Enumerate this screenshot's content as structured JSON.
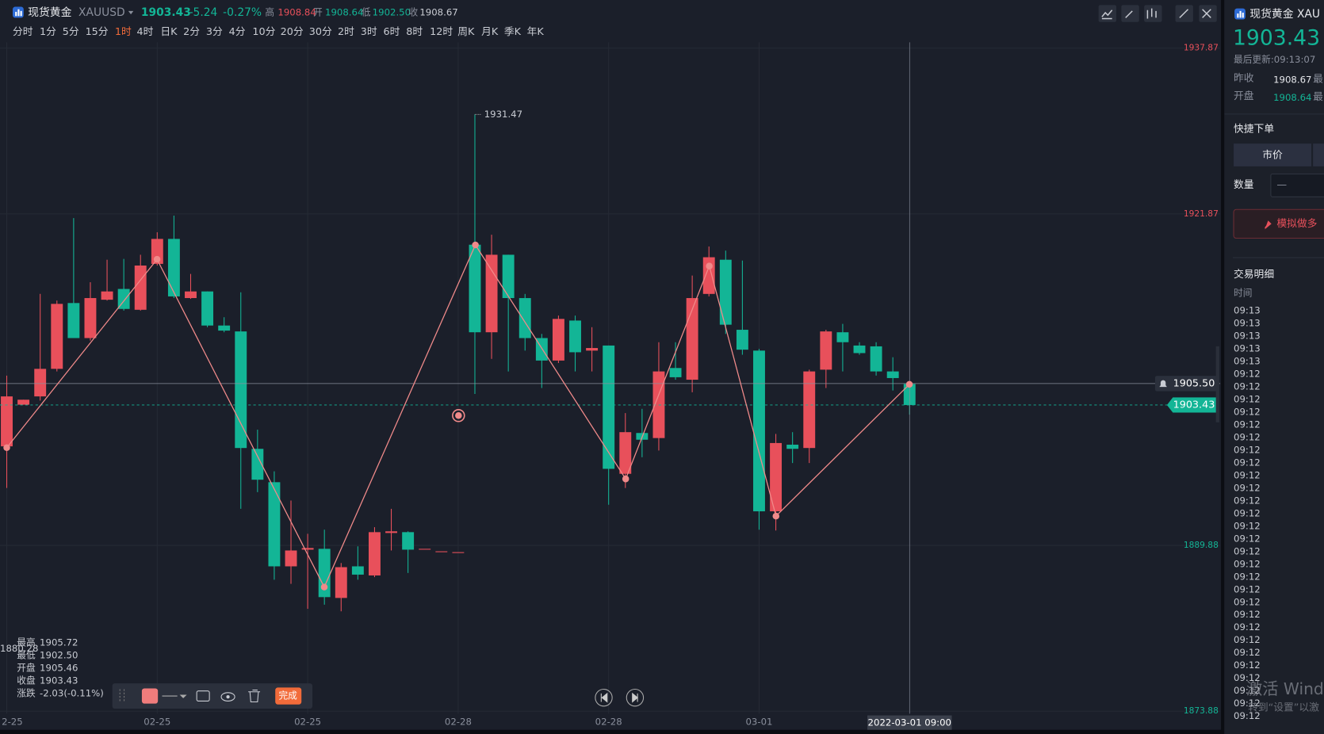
{
  "header": {
    "name": "现货黄金",
    "symbol": "XAUUSD",
    "price": "1903.43",
    "change": "-5.24",
    "change_pct": "-0.27%",
    "high_label": "高",
    "high": "1908.84",
    "open_label": "开",
    "open": "1908.64",
    "low_label": "低",
    "low": "1902.50",
    "close_label": "收",
    "prev_close": 1908.67
  },
  "timeframes": [
    "分时",
    "1分",
    "5分",
    "15分",
    "1时",
    "4时",
    "日K",
    "2分",
    "3分",
    "4分",
    "10分",
    "20分",
    "30分",
    "2时",
    "3时",
    "6时",
    "8时",
    "12时",
    "周K",
    "月K",
    "季K",
    "年K"
  ],
  "active_timeframe": "1时",
  "info": {
    "high_label": "最高",
    "high": "1905.72",
    "low_label": "最低",
    "low": "1902.50",
    "open_label": "开盘",
    "open": "1905.46",
    "close_label": "收盘",
    "close": "1903.43",
    "change_label": "涨跌",
    "change": "-2.03(-0.11%)"
  },
  "left_price": "1880.28",
  "toolbar": {
    "done": "完成"
  },
  "chart_data": {
    "type": "candlestick",
    "up_color": "#e8505b",
    "down_color": "#13b596",
    "ylim": [
      1873.88,
      1937.87
    ],
    "yticks": [
      1937.87,
      1921.87,
      1889.88,
      1873.88
    ],
    "xticks": [
      {
        "value": 0,
        "label": "2-25"
      },
      {
        "value": 9,
        "label": "02-25"
      },
      {
        "value": 18,
        "label": "02-25"
      },
      {
        "value": 27,
        "label": "02-28"
      },
      {
        "value": 36,
        "label": "02-28"
      },
      {
        "value": 45,
        "label": "03-01"
      }
    ],
    "crosshair": {
      "value": 54,
      "label": "2022-03-01 09:00"
    },
    "alert": {
      "value": 1905.5,
      "label": "1905.50"
    },
    "ohlc": [
      [
        1899.44,
        1906.27,
        1895.42,
        1904.26
      ],
      [
        1903.46,
        1903.94,
        1903.46,
        1903.94
      ],
      [
        1904.26,
        1914.15,
        1903.86,
        1906.92
      ],
      [
        1906.92,
        1913.51,
        1906.67,
        1913.19
      ],
      [
        1913.27,
        1921.47,
        1909.89,
        1909.89
      ],
      [
        1909.89,
        1915.28,
        1909.65,
        1913.75
      ],
      [
        1913.59,
        1917.45,
        1913.51,
        1914.39
      ],
      [
        1914.63,
        1917.53,
        1912.54,
        1912.7
      ],
      [
        1912.62,
        1917.93,
        1912.54,
        1916.89
      ],
      [
        1917.05,
        1920.1,
        1916.89,
        1919.46
      ],
      [
        1919.46,
        1921.71,
        1913.75,
        1913.91
      ],
      [
        1913.75,
        1916.08,
        1913.67,
        1914.39
      ],
      [
        1914.39,
        1914.39,
        1910.94,
        1911.1
      ],
      [
        1911.1,
        1911.9,
        1910.45,
        1910.61
      ],
      [
        1910.53,
        1914.31,
        1893.41,
        1899.28
      ],
      [
        1899.2,
        1901.05,
        1895.02,
        1896.22
      ],
      [
        1895.98,
        1897.03,
        1886.57,
        1887.86
      ],
      [
        1887.86,
        1894.21,
        1886.17,
        1889.39
      ],
      [
        1889.47,
        1891.0,
        1883.76,
        1889.63
      ],
      [
        1889.55,
        1891.4,
        1884.16,
        1884.89
      ],
      [
        1884.81,
        1888.18,
        1883.52,
        1887.78
      ],
      [
        1887.86,
        1889.79,
        1886.57,
        1887.06
      ],
      [
        1886.98,
        1891.64,
        1886.82,
        1891.16
      ],
      [
        1891.08,
        1893.41,
        1889.39,
        1891.24
      ],
      [
        1891.16,
        1891.24,
        1887.22,
        1889.47
      ],
      [
        1889.55,
        1889.55,
        1889.55,
        1889.55
      ],
      [
        1889.31,
        1889.31,
        1889.31,
        1889.31
      ],
      [
        1889.23,
        1889.23,
        1889.23,
        1889.23
      ],
      [
        1918.9,
        1931.47,
        1904.5,
        1910.45
      ],
      [
        1910.45,
        1919.86,
        1907.88,
        1917.93
      ],
      [
        1917.93,
        1917.93,
        1906.67,
        1913.75
      ],
      [
        1913.75,
        1914.15,
        1908.68,
        1909.89
      ],
      [
        1909.89,
        1910.29,
        1905.07,
        1907.72
      ],
      [
        1907.72,
        1912.06,
        1907.48,
        1911.74
      ],
      [
        1911.58,
        1912.06,
        1906.67,
        1908.52
      ],
      [
        1908.68,
        1910.94,
        1906.67,
        1908.93
      ],
      [
        1909.17,
        1909.17,
        1893.81,
        1897.27
      ],
      [
        1896.79,
        1902.65,
        1895.42,
        1900.81
      ],
      [
        1900.73,
        1903.06,
        1898.39,
        1900.08
      ],
      [
        1900.24,
        1909.49,
        1899.04,
        1906.67
      ],
      [
        1907.0,
        1909.49,
        1905.87,
        1906.11
      ],
      [
        1905.87,
        1915.92,
        1904.66,
        1913.75
      ],
      [
        1914.15,
        1918.73,
        1913.91,
        1917.69
      ],
      [
        1917.45,
        1918.33,
        1910.29,
        1911.18
      ],
      [
        1910.69,
        1917.37,
        1908.28,
        1908.77
      ],
      [
        1908.68,
        1908.85,
        1891.4,
        1893.17
      ],
      [
        1893.17,
        1900.64,
        1891.32,
        1899.76
      ],
      [
        1899.6,
        1900.81,
        1897.83,
        1899.2
      ],
      [
        1899.28,
        1906.84,
        1897.83,
        1906.67
      ],
      [
        1906.84,
        1910.69,
        1905.07,
        1910.53
      ],
      [
        1910.45,
        1911.26,
        1906.67,
        1909.49
      ],
      [
        1909.17,
        1909.49,
        1908.28,
        1908.44
      ],
      [
        1909.09,
        1909.49,
        1906.27,
        1906.67
      ],
      [
        1906.67,
        1908.04,
        1904.83,
        1906.03
      ],
      [
        1905.46,
        1905.72,
        1902.5,
        1903.43
      ]
    ]
  },
  "sidebar": {
    "name": "现货黄金 XAU",
    "price": "1903.43",
    "updated": "最后更新:09:13:07",
    "prev_close_label": "昨收",
    "prev_close": "1908.67",
    "open_label": "开盘",
    "open": "1908.64",
    "more1": "最",
    "more2": "最",
    "quick_order": "快捷下单",
    "market": "市价",
    "qty_label": "数量",
    "qty": "—",
    "buy": "模拟做多",
    "trades": "交易明细",
    "time_label": "时间",
    "times": [
      "09:13",
      "09:13",
      "09:13",
      "09:13",
      "09:13",
      "09:12",
      "09:12",
      "09:12",
      "09:12",
      "09:12",
      "09:12",
      "09:12",
      "09:12",
      "09:12",
      "09:12",
      "09:12",
      "09:12",
      "09:12",
      "09:12",
      "09:12",
      "09:12",
      "09:12",
      "09:12",
      "09:12",
      "09:12",
      "09:12",
      "09:12",
      "09:12",
      "09:12",
      "09:12",
      "09:12",
      "09:12",
      "09:12"
    ]
  },
  "watermark": {
    "line1": "激活 Wind",
    "line2": "转到“设置”以激"
  }
}
